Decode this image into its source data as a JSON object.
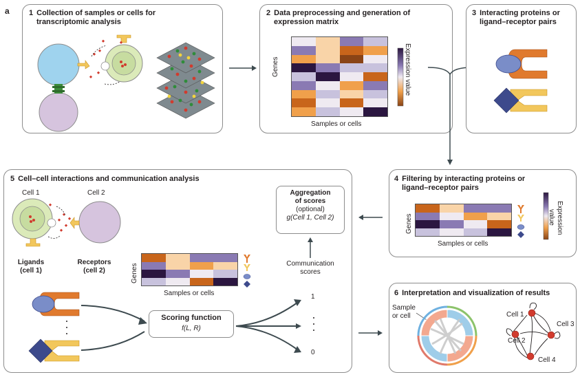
{
  "figure_letter": "a",
  "panels": {
    "p1": {
      "num": "1",
      "title_l1": "Collection of samples or cells for",
      "title_l2": "transcriptomic analysis"
    },
    "p2": {
      "num": "2",
      "title_l1": "Data preprocessing and generation of",
      "title_l2": "expression matrix",
      "ylabel": "Genes",
      "xlabel": "Samples or cells",
      "colorbar_label": "Expression value"
    },
    "p3": {
      "num": "3",
      "title_l1": "Interacting proteins or",
      "title_l2": "ligand–receptor pairs"
    },
    "p4": {
      "num": "4",
      "title_l1": "Filtering by interacting proteins or",
      "title_l2": "ligand–receptor pairs",
      "ylabel": "Genes",
      "xlabel": "Samples or cells",
      "colorbar_l1": "Expression",
      "colorbar_l2": "value"
    },
    "p5": {
      "num": "5",
      "title": "Cell–cell interactions and communication analysis",
      "cell1": "Cell 1",
      "cell2": "Cell 2",
      "ligands_l1": "Ligands",
      "ligands_l2": "(cell 1)",
      "receptors_l1": "Receptors",
      "receptors_l2": "(cell 2)",
      "ylabel": "Genes",
      "xlabel": "Samples or cells",
      "agg_l1": "Aggregation",
      "agg_l2": "of scores",
      "agg_l3": "(optional)",
      "agg_func": "g(Cell 1, Cell 2)",
      "comm_l1": "Communication",
      "comm_l2": "scores",
      "score_title": "Scoring function",
      "score_func": "f(L, R)",
      "tick_top": "1",
      "tick_bottom": "0"
    },
    "p6": {
      "num": "6",
      "title": "Interpretation and visualization of results",
      "sample_l1": "Sample",
      "sample_l2": "or cell",
      "cell1": "Cell 1",
      "cell2": "Cell 2",
      "cell3": "Cell 3",
      "cell4": "Cell 4"
    }
  },
  "colors": {
    "dark_purple": "#2b1640",
    "mid_purple": "#8a7ab3",
    "light_purple": "#c8c2dd",
    "pale": "#efeaf1",
    "pale_orange": "#f9d4a8",
    "orange": "#f0a04b",
    "dark_orange": "#c8651b",
    "brown": "#8a4416",
    "receptor_orange": "#e07a2e",
    "receptor_yellow": "#f2c75c",
    "ligand_blue": "#7a8dc8",
    "ligand_navy": "#3d4a8c"
  },
  "heatmaps": {
    "p2": [
      [
        "pale",
        "pale_orange",
        "mid_purple",
        "light_purple"
      ],
      [
        "mid_purple",
        "pale_orange",
        "dark_orange",
        "orange"
      ],
      [
        "orange",
        "pale_orange",
        "brown",
        "pale"
      ],
      [
        "dark_purple",
        "mid_purple",
        "light_purple",
        "light_purple"
      ],
      [
        "light_purple",
        "dark_purple",
        "pale",
        "dark_orange"
      ],
      [
        "mid_purple",
        "pale",
        "orange",
        "mid_purple"
      ],
      [
        "orange",
        "light_purple",
        "pale_orange",
        "light_purple"
      ],
      [
        "dark_orange",
        "pale",
        "dark_orange",
        "pale"
      ],
      [
        "orange",
        "light_purple",
        "pale",
        "dark_purple"
      ]
    ],
    "p4": [
      [
        "dark_orange",
        "pale_orange",
        "mid_purple",
        "mid_purple"
      ],
      [
        "mid_purple",
        "pale",
        "orange",
        "pale_orange"
      ],
      [
        "dark_purple",
        "mid_purple",
        "pale",
        "dark_orange"
      ],
      [
        "light_purple",
        "pale",
        "light_purple",
        "dark_purple"
      ]
    ],
    "p5": [
      [
        "dark_orange",
        "pale_orange",
        "mid_purple",
        "mid_purple"
      ],
      [
        "mid_purple",
        "pale_orange",
        "orange",
        "pale_orange"
      ],
      [
        "dark_purple",
        "mid_purple",
        "pale",
        "light_purple"
      ],
      [
        "light_purple",
        "pale",
        "dark_orange",
        "dark_purple"
      ]
    ]
  }
}
